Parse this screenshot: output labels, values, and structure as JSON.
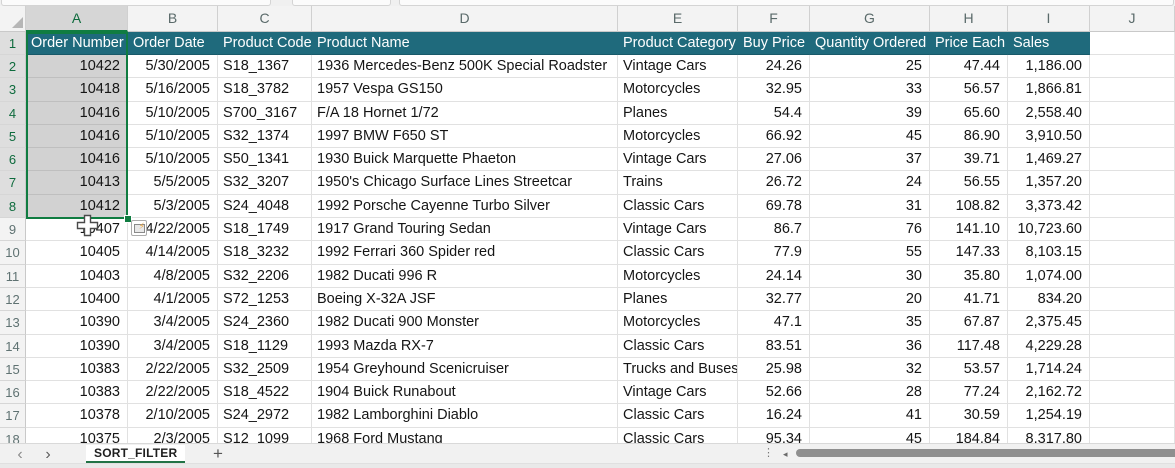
{
  "sheet": {
    "column_letters": [
      "A",
      "B",
      "C",
      "D",
      "E",
      "F",
      "G",
      "H",
      "I",
      "J"
    ],
    "row_numbers": [
      1,
      2,
      3,
      4,
      5,
      6,
      7,
      8,
      9,
      10,
      11,
      12,
      13,
      14,
      15,
      16,
      17,
      18
    ],
    "selected_range": "A1:A8",
    "selected_column": "A"
  },
  "table": {
    "headers": [
      "Order Number",
      "Order Date",
      "Product Code",
      "Product Name",
      "Product Category",
      "Buy Price",
      "Quantity Ordered",
      "Price Each",
      "Sales"
    ],
    "rows": [
      [
        "10422",
        "5/30/2005",
        "S18_1367",
        "1936 Mercedes-Benz 500K Special Roadster",
        "Vintage Cars",
        "24.26",
        "25",
        "47.44",
        "1,186.00"
      ],
      [
        "10418",
        "5/16/2005",
        "S18_3782",
        "1957 Vespa GS150",
        "Motorcycles",
        "32.95",
        "33",
        "56.57",
        "1,866.81"
      ],
      [
        "10416",
        "5/10/2005",
        "S700_3167",
        "F/A 18 Hornet 1/72",
        "Planes",
        "54.4",
        "39",
        "65.60",
        "2,558.40"
      ],
      [
        "10416",
        "5/10/2005",
        "S32_1374",
        "1997 BMW F650 ST",
        "Motorcycles",
        "66.92",
        "45",
        "86.90",
        "3,910.50"
      ],
      [
        "10416",
        "5/10/2005",
        "S50_1341",
        "1930 Buick Marquette Phaeton",
        "Vintage Cars",
        "27.06",
        "37",
        "39.71",
        "1,469.27"
      ],
      [
        "10413",
        "5/5/2005",
        "S32_3207",
        "1950's Chicago Surface Lines Streetcar",
        "Trains",
        "26.72",
        "24",
        "56.55",
        "1,357.20"
      ],
      [
        "10412",
        "5/3/2005",
        "S24_4048",
        "1992 Porsche Cayenne Turbo Silver",
        "Classic Cars",
        "69.78",
        "31",
        "108.82",
        "3,373.42"
      ],
      [
        "10407",
        "4/22/2005",
        "S18_1749",
        "1917 Grand Touring Sedan",
        "Vintage Cars",
        "86.7",
        "76",
        "141.10",
        "10,723.60"
      ],
      [
        "10405",
        "4/14/2005",
        "S18_3232",
        "1992 Ferrari 360 Spider red",
        "Classic Cars",
        "77.9",
        "55",
        "147.33",
        "8,103.15"
      ],
      [
        "10403",
        "4/8/2005",
        "S32_2206",
        "1982 Ducati 996 R",
        "Motorcycles",
        "24.14",
        "30",
        "35.80",
        "1,074.00"
      ],
      [
        "10400",
        "4/1/2005",
        "S72_1253",
        "Boeing X-32A JSF",
        "Planes",
        "32.77",
        "20",
        "41.71",
        "834.20"
      ],
      [
        "10390",
        "3/4/2005",
        "S24_2360",
        "1982 Ducati 900 Monster",
        "Motorcycles",
        "47.1",
        "35",
        "67.87",
        "2,375.45"
      ],
      [
        "10390",
        "3/4/2005",
        "S18_1129",
        "1993 Mazda RX-7",
        "Classic Cars",
        "83.51",
        "36",
        "117.48",
        "4,229.28"
      ],
      [
        "10383",
        "2/22/2005",
        "S32_2509",
        "1954 Greyhound Scenicruiser",
        "Trucks and Buses",
        "25.98",
        "32",
        "53.57",
        "1,714.24"
      ],
      [
        "10383",
        "2/22/2005",
        "S18_4522",
        "1904 Buick Runabout",
        "Vintage Cars",
        "52.66",
        "28",
        "77.24",
        "2,162.72"
      ],
      [
        "10378",
        "2/10/2005",
        "S24_2972",
        "1982 Lamborghini Diablo",
        "Classic Cars",
        "16.24",
        "41",
        "30.59",
        "1,254.19"
      ],
      [
        "10375",
        "2/3/2005",
        "S12_1099",
        "1968 Ford Mustang",
        "Classic Cars",
        "95.34",
        "45",
        "184.84",
        "8,317.80"
      ]
    ]
  },
  "sheetbar": {
    "prev": "‹",
    "next": "›",
    "tab_label": "SORT_FILTER",
    "add": "+",
    "split_dots": "⋮",
    "scroll_left": "◂"
  },
  "colors": {
    "header_fill": "#1f6a7c",
    "selection_border": "#107c41",
    "selection_fill": "#d2d2d2",
    "tab_underline": "#217346"
  },
  "icons": {
    "quick_analysis_bolt": "⚡"
  }
}
